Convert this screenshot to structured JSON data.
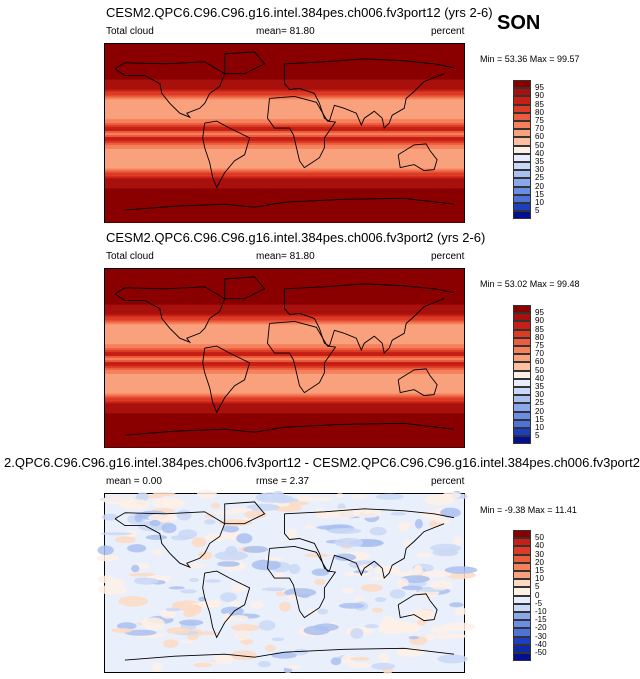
{
  "season": "SON",
  "colors": {
    "warm": [
      "#fff0e6",
      "#fdd9c2",
      "#fcbfa0",
      "#f9a07c",
      "#f5805c",
      "#ec5d3e",
      "#dc3b26",
      "#c61f15",
      "#a8100d",
      "#8a0000"
    ],
    "cool": [
      "#e6edfb",
      "#c9d8f6",
      "#a9c0f0",
      "#89a7ea",
      "#6a8ee3",
      "#4c73da",
      "#3159cf",
      "#1b3fc0",
      "#0d28ab",
      "#030f8f"
    ],
    "land_outline": "#000000",
    "diff_base": "#eaf0fb"
  },
  "panels": [
    {
      "title": "CESM2.QPC6.C96.C96.g16.intel.384pes.ch006.fv3port12 (yrs 2-6)",
      "left_label": "Total cloud",
      "mid_label": "mean=  81.80",
      "right_label": "percent",
      "minmax": "Min =  53.36 Max =  99.57",
      "levels": [
        "95",
        "90",
        "85",
        "80",
        "75",
        "70",
        "60",
        "50",
        "40",
        "35",
        "30",
        "25",
        "20",
        "15",
        "10",
        "5"
      ],
      "kind": "abs"
    },
    {
      "title": "CESM2.QPC6.C96.C96.g16.intel.384pes.ch006.fv3port2 (yrs 2-6)",
      "left_label": "Total cloud",
      "mid_label": "mean=  81.80",
      "right_label": "percent",
      "minmax": "Min =  53.02 Max =  99.48",
      "levels": [
        "95",
        "90",
        "85",
        "80",
        "75",
        "70",
        "60",
        "50",
        "40",
        "35",
        "30",
        "25",
        "20",
        "15",
        "10",
        "5"
      ],
      "kind": "abs"
    },
    {
      "title": "2.QPC6.C96.C96.g16.intel.384pes.ch006.fv3port12 - CESM2.QPC6.C96.C96.g16.intel.384pes.ch006.fv3port2",
      "left_label": "mean =   0.00",
      "mid_label": "rmse =   2.37",
      "right_label": "percent",
      "minmax": "Min =  -9.38 Max =  11.41",
      "levels": [
        "50",
        "40",
        "30",
        "20",
        "15",
        "10",
        "5",
        "0",
        "-5",
        "-10",
        "-15",
        "-20",
        "-30",
        "-40",
        "-50"
      ],
      "kind": "diff"
    }
  ],
  "chart_data": [
    {
      "type": "heatmap",
      "title": "CESM2.QPC6.C96.C96.g16.intel.384pes.ch006.fv3port12 (yrs 2-6)",
      "variable": "Total cloud",
      "units": "percent",
      "mean": 81.8,
      "min": 53.36,
      "max": 99.57,
      "contour_levels": [
        5,
        10,
        15,
        20,
        25,
        30,
        35,
        40,
        50,
        60,
        70,
        75,
        80,
        85,
        90,
        95
      ],
      "zonal_structure": [
        {
          "lat": 90,
          "value": 97
        },
        {
          "lat": 60,
          "value": 97
        },
        {
          "lat": 45,
          "value": 90
        },
        {
          "lat": 30,
          "value": 62
        },
        {
          "lat": 15,
          "value": 68
        },
        {
          "lat": 5,
          "value": 90
        },
        {
          "lat": 0,
          "value": 72
        },
        {
          "lat": -5,
          "value": 90
        },
        {
          "lat": -15,
          "value": 68
        },
        {
          "lat": -30,
          "value": 62
        },
        {
          "lat": -45,
          "value": 90
        },
        {
          "lat": -60,
          "value": 97
        },
        {
          "lat": -90,
          "value": 97
        }
      ]
    },
    {
      "type": "heatmap",
      "title": "CESM2.QPC6.C96.C96.g16.intel.384pes.ch006.fv3port2 (yrs 2-6)",
      "variable": "Total cloud",
      "units": "percent",
      "mean": 81.8,
      "min": 53.02,
      "max": 99.48,
      "contour_levels": [
        5,
        10,
        15,
        20,
        25,
        30,
        35,
        40,
        50,
        60,
        70,
        75,
        80,
        85,
        90,
        95
      ],
      "zonal_structure": [
        {
          "lat": 90,
          "value": 97
        },
        {
          "lat": 60,
          "value": 97
        },
        {
          "lat": 45,
          "value": 90
        },
        {
          "lat": 30,
          "value": 62
        },
        {
          "lat": 15,
          "value": 68
        },
        {
          "lat": 5,
          "value": 90
        },
        {
          "lat": 0,
          "value": 72
        },
        {
          "lat": -5,
          "value": 90
        },
        {
          "lat": -15,
          "value": 68
        },
        {
          "lat": -30,
          "value": 62
        },
        {
          "lat": -45,
          "value": 90
        },
        {
          "lat": -60,
          "value": 97
        },
        {
          "lat": -90,
          "value": 97
        }
      ]
    },
    {
      "type": "heatmap",
      "title": "2.QPC6.C96.C96.g16.intel.384pes.ch006.fv3port12 - CESM2.QPC6.C96.C96.g16.intel.384pes.ch006.fv3port2",
      "units": "percent",
      "mean": 0.0,
      "rmse": 2.37,
      "min": -9.38,
      "max": 11.41,
      "contour_levels": [
        -50,
        -40,
        -30,
        -20,
        -15,
        -10,
        -5,
        0,
        5,
        10,
        15,
        20,
        30,
        40,
        50
      ]
    }
  ]
}
